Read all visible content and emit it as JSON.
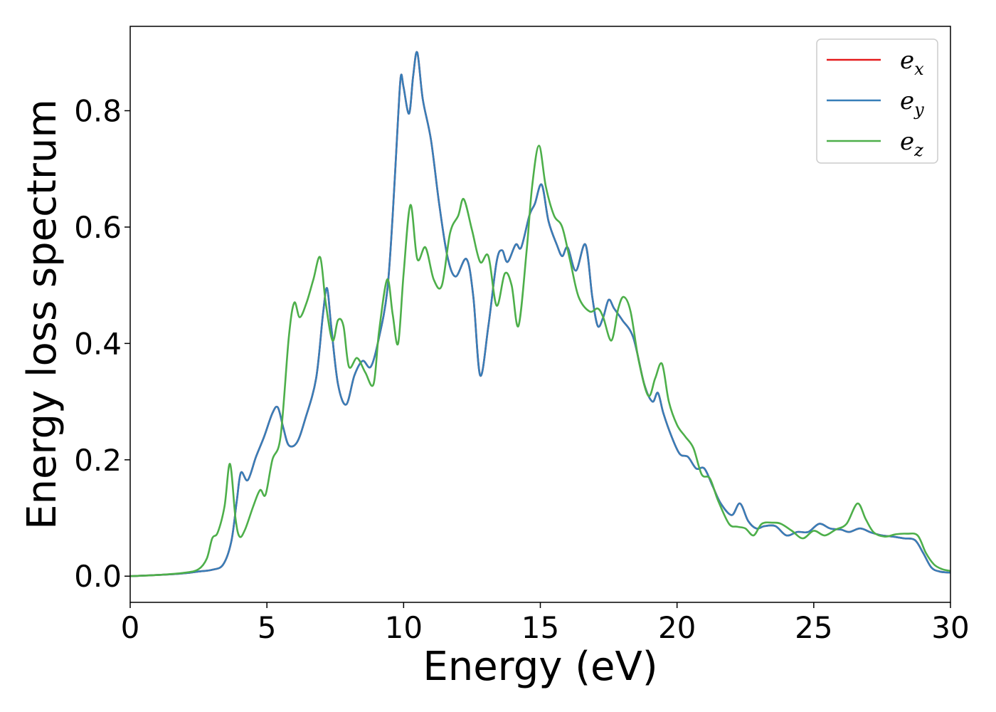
{
  "chart_data": {
    "type": "line",
    "title": "",
    "xlabel": "Energy (eV)",
    "ylabel": "Energy loss spectrum",
    "xlim": [
      0,
      30
    ],
    "ylim": [
      -0.045,
      0.945
    ],
    "xticks": [
      0,
      5,
      10,
      15,
      20,
      25,
      30
    ],
    "xtick_labels": [
      "0",
      "5",
      "10",
      "15",
      "20",
      "25",
      "30"
    ],
    "yticks": [
      0.0,
      0.2,
      0.4,
      0.6,
      0.8
    ],
    "ytick_labels": [
      "0.0",
      "0.2",
      "0.4",
      "0.6",
      "0.8"
    ],
    "grid": false,
    "legend_position": "top-right",
    "series": [
      {
        "name": "e_x",
        "name_base": "e",
        "name_sub": "x",
        "color": "#e41a1c",
        "x": [
          0,
          1,
          2,
          2.5,
          3,
          3.4,
          3.7,
          3.9,
          4.05,
          4.3,
          4.6,
          4.9,
          5.2,
          5.4,
          5.6,
          5.8,
          6.1,
          6.4,
          6.8,
          7.05,
          7.2,
          7.35,
          7.6,
          7.9,
          8.2,
          8.5,
          8.8,
          9.1,
          9.4,
          9.6,
          9.8,
          9.9,
          10.0,
          10.2,
          10.35,
          10.5,
          10.7,
          11.0,
          11.3,
          11.6,
          11.9,
          12.3,
          12.55,
          12.8,
          13.1,
          13.4,
          13.6,
          13.8,
          14.1,
          14.3,
          14.6,
          14.8,
          15.05,
          15.3,
          15.6,
          15.8,
          16.0,
          16.3,
          16.65,
          16.9,
          17.1,
          17.3,
          17.5,
          17.7,
          18.0,
          18.4,
          18.8,
          19.1,
          19.3,
          19.5,
          19.8,
          20.1,
          20.4,
          20.7,
          21.0,
          21.3,
          21.6,
          22.0,
          22.3,
          22.6,
          22.9,
          23.2,
          23.6,
          24.0,
          24.4,
          24.8,
          25.2,
          25.6,
          26.0,
          26.3,
          26.7,
          27.1,
          27.5,
          27.9,
          28.3,
          28.7,
          29.0,
          29.3,
          29.6,
          30.0
        ],
        "values": [
          0.0,
          0.002,
          0.005,
          0.008,
          0.011,
          0.02,
          0.06,
          0.13,
          0.178,
          0.165,
          0.205,
          0.24,
          0.28,
          0.29,
          0.255,
          0.225,
          0.23,
          0.27,
          0.34,
          0.45,
          0.495,
          0.43,
          0.33,
          0.295,
          0.345,
          0.37,
          0.36,
          0.41,
          0.49,
          0.62,
          0.79,
          0.86,
          0.84,
          0.795,
          0.86,
          0.9,
          0.82,
          0.75,
          0.64,
          0.55,
          0.515,
          0.545,
          0.48,
          0.345,
          0.43,
          0.54,
          0.56,
          0.54,
          0.57,
          0.565,
          0.62,
          0.64,
          0.673,
          0.61,
          0.57,
          0.55,
          0.565,
          0.525,
          0.57,
          0.48,
          0.43,
          0.445,
          0.475,
          0.46,
          0.44,
          0.41,
          0.33,
          0.3,
          0.315,
          0.28,
          0.24,
          0.21,
          0.205,
          0.185,
          0.185,
          0.155,
          0.125,
          0.105,
          0.125,
          0.095,
          0.082,
          0.086,
          0.086,
          0.07,
          0.076,
          0.076,
          0.09,
          0.082,
          0.08,
          0.076,
          0.082,
          0.075,
          0.07,
          0.068,
          0.065,
          0.062,
          0.04,
          0.015,
          0.008,
          0.006
        ]
      },
      {
        "name": "e_y",
        "name_base": "e",
        "name_sub": "y",
        "color": "#377eb8",
        "x": [
          0,
          1,
          2,
          2.5,
          3,
          3.4,
          3.7,
          3.9,
          4.05,
          4.3,
          4.6,
          4.9,
          5.2,
          5.4,
          5.6,
          5.8,
          6.1,
          6.4,
          6.8,
          7.05,
          7.2,
          7.35,
          7.6,
          7.9,
          8.2,
          8.5,
          8.8,
          9.1,
          9.4,
          9.6,
          9.8,
          9.9,
          10.0,
          10.2,
          10.35,
          10.5,
          10.7,
          11.0,
          11.3,
          11.6,
          11.9,
          12.3,
          12.55,
          12.8,
          13.1,
          13.4,
          13.6,
          13.8,
          14.1,
          14.3,
          14.6,
          14.8,
          15.05,
          15.3,
          15.6,
          15.8,
          16.0,
          16.3,
          16.65,
          16.9,
          17.1,
          17.3,
          17.5,
          17.7,
          18.0,
          18.4,
          18.8,
          19.1,
          19.3,
          19.5,
          19.8,
          20.1,
          20.4,
          20.7,
          21.0,
          21.3,
          21.6,
          22.0,
          22.3,
          22.6,
          22.9,
          23.2,
          23.6,
          24.0,
          24.4,
          24.8,
          25.2,
          25.6,
          26.0,
          26.3,
          26.7,
          27.1,
          27.5,
          27.9,
          28.3,
          28.7,
          29.0,
          29.3,
          29.6,
          30.0
        ],
        "values": [
          0.0,
          0.002,
          0.005,
          0.008,
          0.011,
          0.02,
          0.06,
          0.13,
          0.178,
          0.165,
          0.205,
          0.24,
          0.28,
          0.29,
          0.255,
          0.225,
          0.23,
          0.27,
          0.34,
          0.45,
          0.495,
          0.43,
          0.33,
          0.295,
          0.345,
          0.37,
          0.36,
          0.41,
          0.49,
          0.62,
          0.79,
          0.86,
          0.84,
          0.795,
          0.86,
          0.9,
          0.82,
          0.75,
          0.64,
          0.55,
          0.515,
          0.545,
          0.48,
          0.345,
          0.43,
          0.54,
          0.56,
          0.54,
          0.57,
          0.565,
          0.62,
          0.64,
          0.673,
          0.61,
          0.57,
          0.55,
          0.565,
          0.525,
          0.57,
          0.48,
          0.43,
          0.445,
          0.475,
          0.46,
          0.44,
          0.41,
          0.33,
          0.3,
          0.315,
          0.28,
          0.24,
          0.21,
          0.205,
          0.185,
          0.185,
          0.155,
          0.125,
          0.105,
          0.125,
          0.095,
          0.082,
          0.086,
          0.086,
          0.07,
          0.076,
          0.076,
          0.09,
          0.082,
          0.08,
          0.076,
          0.082,
          0.075,
          0.07,
          0.068,
          0.065,
          0.062,
          0.04,
          0.015,
          0.008,
          0.006
        ]
      },
      {
        "name": "e_z",
        "name_base": "e",
        "name_sub": "z",
        "color": "#4daf4a",
        "x": [
          0,
          1,
          2,
          2.5,
          2.8,
          3.0,
          3.2,
          3.45,
          3.65,
          3.85,
          4.0,
          4.2,
          4.5,
          4.75,
          4.95,
          5.2,
          5.5,
          5.8,
          6.0,
          6.2,
          6.45,
          6.7,
          6.95,
          7.15,
          7.4,
          7.6,
          7.8,
          8.0,
          8.3,
          8.6,
          8.9,
          9.1,
          9.4,
          9.6,
          9.8,
          10.0,
          10.25,
          10.5,
          10.8,
          11.1,
          11.4,
          11.7,
          12.0,
          12.2,
          12.5,
          12.8,
          13.1,
          13.4,
          13.7,
          13.95,
          14.2,
          14.5,
          14.7,
          14.95,
          15.2,
          15.5,
          15.8,
          16.1,
          16.4,
          16.8,
          17.1,
          17.3,
          17.6,
          17.85,
          18.05,
          18.3,
          18.6,
          18.95,
          19.2,
          19.45,
          19.7,
          20.0,
          20.3,
          20.6,
          20.9,
          21.2,
          21.5,
          21.9,
          22.2,
          22.5,
          22.8,
          23.1,
          23.5,
          23.8,
          24.2,
          24.6,
          25.0,
          25.4,
          25.8,
          26.2,
          26.6,
          26.9,
          27.2,
          27.6,
          28.0,
          28.4,
          28.8,
          29.1,
          29.4,
          29.7,
          30.0
        ],
        "values": [
          0.0,
          0.002,
          0.006,
          0.012,
          0.03,
          0.065,
          0.075,
          0.12,
          0.193,
          0.1,
          0.068,
          0.08,
          0.12,
          0.148,
          0.14,
          0.2,
          0.24,
          0.41,
          0.47,
          0.445,
          0.47,
          0.51,
          0.548,
          0.47,
          0.405,
          0.44,
          0.43,
          0.36,
          0.375,
          0.35,
          0.33,
          0.42,
          0.51,
          0.45,
          0.4,
          0.52,
          0.638,
          0.545,
          0.565,
          0.51,
          0.5,
          0.59,
          0.62,
          0.648,
          0.595,
          0.54,
          0.55,
          0.465,
          0.52,
          0.5,
          0.43,
          0.56,
          0.67,
          0.74,
          0.67,
          0.62,
          0.6,
          0.54,
          0.48,
          0.455,
          0.46,
          0.445,
          0.405,
          0.46,
          0.48,
          0.455,
          0.37,
          0.31,
          0.34,
          0.365,
          0.3,
          0.26,
          0.24,
          0.22,
          0.175,
          0.168,
          0.13,
          0.09,
          0.085,
          0.082,
          0.07,
          0.09,
          0.092,
          0.09,
          0.078,
          0.065,
          0.078,
          0.07,
          0.08,
          0.09,
          0.125,
          0.098,
          0.075,
          0.068,
          0.072,
          0.073,
          0.07,
          0.04,
          0.02,
          0.012,
          0.009
        ]
      }
    ]
  }
}
